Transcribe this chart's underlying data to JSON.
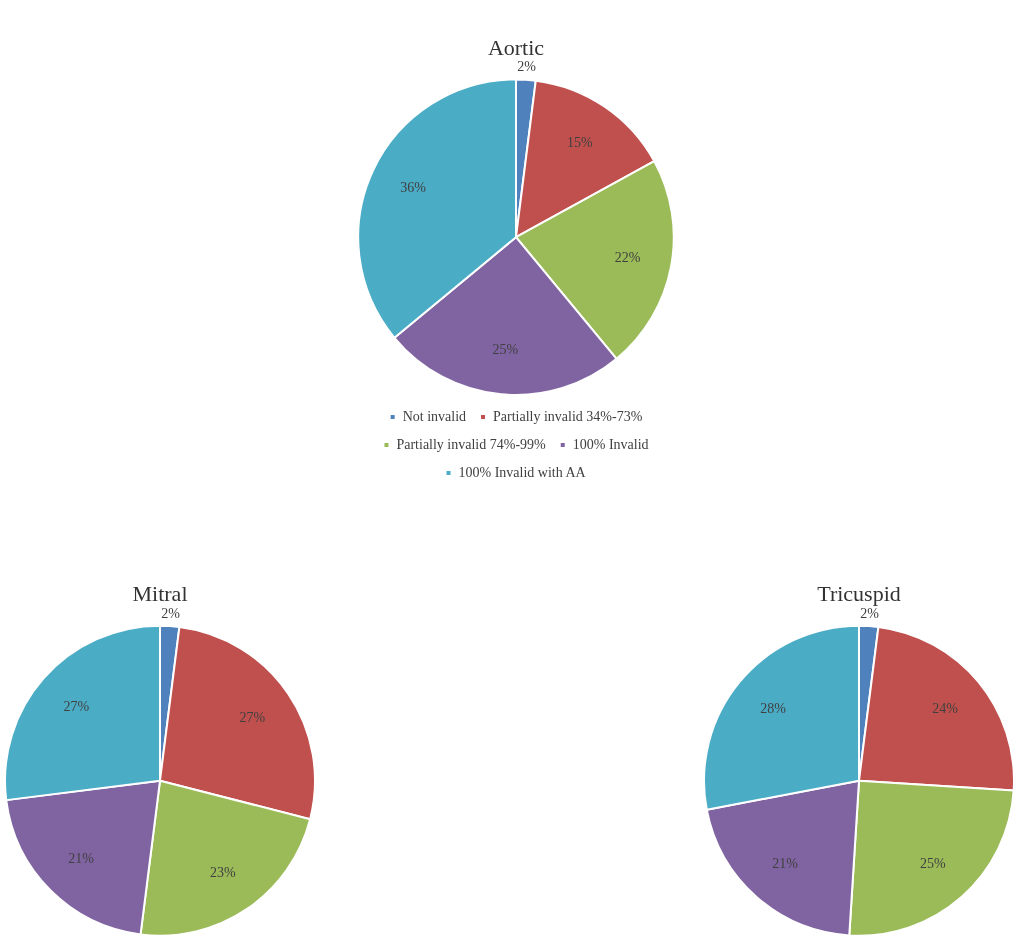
{
  "chart_data": [
    {
      "type": "pie",
      "title": "Aortic",
      "categories": [
        "Not invalid",
        "Partially invalid 34%-73%",
        "Partially invalid 74%-99%",
        "100% Invalid",
        "100% Invalid with AA"
      ],
      "values": [
        2,
        15,
        22,
        25,
        36
      ],
      "colors": [
        "#4f81bd",
        "#c0504d",
        "#9bbb59",
        "#8064a2",
        "#4bacc6"
      ],
      "value_labels": [
        "2%",
        "15%",
        "22%",
        "25%",
        "36%"
      ],
      "legend": "bottom"
    },
    {
      "type": "pie",
      "title": "Mitral",
      "categories": [
        null,
        null,
        null,
        null,
        null
      ],
      "values": [
        2,
        27,
        23,
        21,
        27
      ],
      "colors": [
        "#4f81bd",
        "#c0504d",
        "#9bbb59",
        "#8064a2",
        "#4bacc6"
      ],
      "value_labels": [
        "2%",
        "27%",
        "23%",
        "21%",
        "27%"
      ]
    },
    {
      "type": "pie",
      "title": "Tricuspid",
      "categories": [
        null,
        null,
        null,
        null,
        null
      ],
      "values": [
        2,
        24,
        25,
        21,
        28
      ],
      "colors": [
        "#4f81bd",
        "#c0504d",
        "#9bbb59",
        "#8064a2",
        "#4bacc6"
      ],
      "value_labels": [
        "2%",
        "24%",
        "25%",
        "21%",
        "28%"
      ]
    }
  ]
}
